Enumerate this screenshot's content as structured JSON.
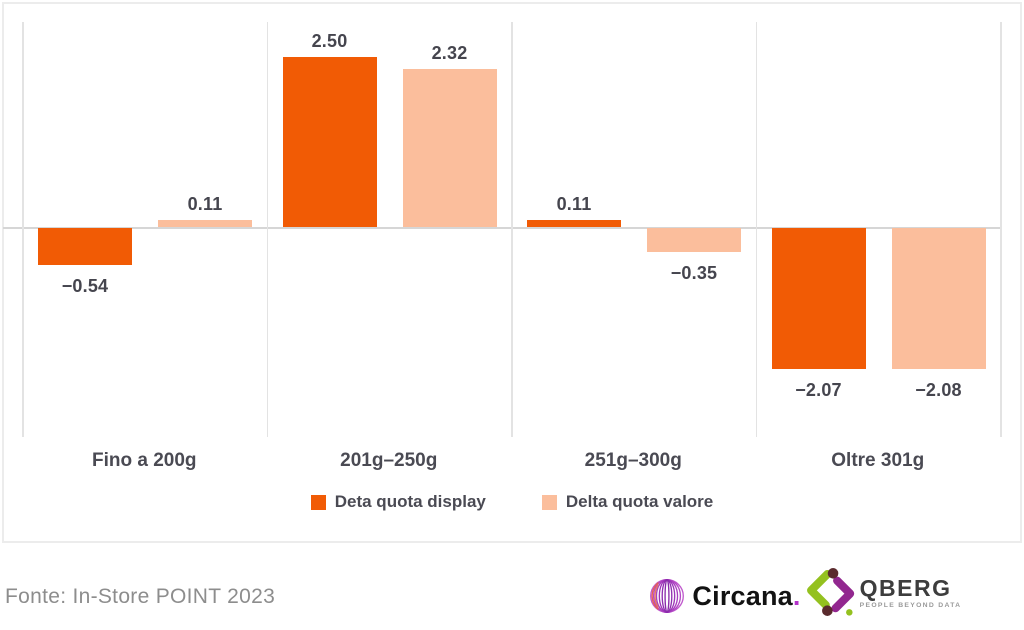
{
  "chart_data": {
    "type": "bar",
    "categories": [
      "Fino a 200g",
      "201g–250g",
      "251g–300g",
      "Oltre 301g"
    ],
    "series": [
      {
        "name": "Deta quota display",
        "color": "#F15B05",
        "values": [
          -0.54,
          2.5,
          0.11,
          -2.07
        ],
        "labels": [
          "−0.54",
          "2.50",
          "0.11",
          "−2.07"
        ]
      },
      {
        "name": "Delta quota valore",
        "color": "#FBBE9C",
        "values": [
          0.11,
          2.32,
          -0.35,
          -2.08
        ],
        "labels": [
          "0.11",
          "2.32",
          "−0.35",
          "−2.08"
        ]
      }
    ],
    "title": "",
    "xlabel": "",
    "ylabel": "",
    "ylim": [
      -3,
      3
    ],
    "baseline": 0,
    "grid": "vertical category separators only",
    "legend_position": "bottom-center",
    "value_labels_shown": true
  },
  "footer": {
    "source": "Fonte: In-Store POINT 2023"
  },
  "logos": {
    "circana": {
      "name": "Circana",
      "suffix": "."
    },
    "qberg": {
      "name": "QBERG",
      "tagline": "PEOPLE BEYOND DATA"
    }
  },
  "colors": {
    "bar_primary": "#F15B05",
    "bar_secondary": "#FBBE9C",
    "value_text": "#45454E",
    "category_text": "#4A4A53",
    "gridline": "#E3E3E3",
    "zero_line": "#D6D6D6",
    "frame_border": "#ECECEC",
    "footer_text": "#8D8D8D",
    "circana_purple": "#B44AC6",
    "circana_coral": "#E8614F",
    "qberg_green": "#94C11F",
    "qberg_purple": "#92278F",
    "qberg_maroon": "#5A2A2D"
  }
}
